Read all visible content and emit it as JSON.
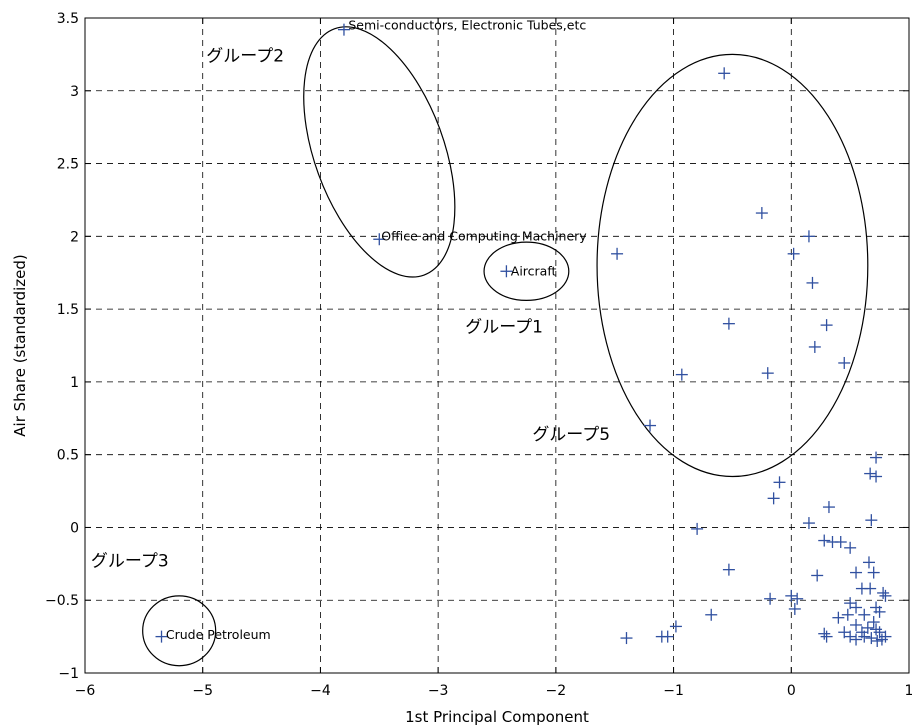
{
  "chart_data": {
    "type": "scatter",
    "xlabel": "1st Principal Component",
    "ylabel": "Air Share (standardized)",
    "xlim": [
      -6,
      1
    ],
    "ylim": [
      -1,
      3.5
    ],
    "xticks": [
      -6,
      -5,
      -4,
      -3,
      -2,
      -1,
      0,
      1
    ],
    "xtick_labels": [
      "−6",
      "−5",
      "−4",
      "−3",
      "−2",
      "−1",
      "0",
      "1"
    ],
    "yticks": [
      -1,
      -0.5,
      0,
      0.5,
      1,
      1.5,
      2,
      2.5,
      3,
      3.5
    ],
    "ytick_labels": [
      "−1",
      "−0.5",
      "0",
      "0.5",
      "1",
      "1.5",
      "2",
      "2.5",
      "3",
      "3.5"
    ],
    "grid": true,
    "marker": "+",
    "marker_color": "#3050a0",
    "points": [
      {
        "x": -3.8,
        "y": 3.42
      },
      {
        "x": -3.5,
        "y": 1.98
      },
      {
        "x": -2.42,
        "y": 1.76
      },
      {
        "x": -5.35,
        "y": -0.75
      },
      {
        "x": -0.57,
        "y": 3.12
      },
      {
        "x": -1.48,
        "y": 1.88
      },
      {
        "x": -0.25,
        "y": 2.16
      },
      {
        "x": 0.15,
        "y": 2.0
      },
      {
        "x": 0.02,
        "y": 1.88
      },
      {
        "x": 0.18,
        "y": 1.68
      },
      {
        "x": -0.53,
        "y": 1.4
      },
      {
        "x": 0.3,
        "y": 1.39
      },
      {
        "x": 0.2,
        "y": 1.24
      },
      {
        "x": 0.45,
        "y": 1.13
      },
      {
        "x": -0.93,
        "y": 1.05
      },
      {
        "x": -0.2,
        "y": 1.06
      },
      {
        "x": -1.2,
        "y": 0.7
      },
      {
        "x": 0.72,
        "y": 0.48
      },
      {
        "x": 0.67,
        "y": 0.37
      },
      {
        "x": 0.72,
        "y": 0.35
      },
      {
        "x": -0.1,
        "y": 0.31
      },
      {
        "x": -0.15,
        "y": 0.2
      },
      {
        "x": 0.32,
        "y": 0.14
      },
      {
        "x": 0.15,
        "y": 0.03
      },
      {
        "x": 0.68,
        "y": 0.05
      },
      {
        "x": -0.8,
        "y": -0.01
      },
      {
        "x": 0.28,
        "y": -0.09
      },
      {
        "x": 0.35,
        "y": -0.1
      },
      {
        "x": 0.42,
        "y": -0.1
      },
      {
        "x": 0.5,
        "y": -0.14
      },
      {
        "x": 0.66,
        "y": -0.24
      },
      {
        "x": -0.53,
        "y": -0.29
      },
      {
        "x": 0.22,
        "y": -0.33
      },
      {
        "x": 0.55,
        "y": -0.31
      },
      {
        "x": 0.7,
        "y": -0.31
      },
      {
        "x": 0.6,
        "y": -0.42
      },
      {
        "x": 0.67,
        "y": -0.42
      },
      {
        "x": 0.78,
        "y": -0.45
      },
      {
        "x": 0.8,
        "y": -0.47
      },
      {
        "x": 0.0,
        "y": -0.47
      },
      {
        "x": 0.05,
        "y": -0.49
      },
      {
        "x": -0.18,
        "y": -0.49
      },
      {
        "x": 0.03,
        "y": -0.56
      },
      {
        "x": 0.5,
        "y": -0.52
      },
      {
        "x": 0.55,
        "y": -0.55
      },
      {
        "x": 0.72,
        "y": -0.55
      },
      {
        "x": 0.75,
        "y": -0.58
      },
      {
        "x": 0.48,
        "y": -0.6
      },
      {
        "x": 0.62,
        "y": -0.6
      },
      {
        "x": -0.68,
        "y": -0.6
      },
      {
        "x": 0.4,
        "y": -0.62
      },
      {
        "x": 0.7,
        "y": -0.65
      },
      {
        "x": 0.55,
        "y": -0.67
      },
      {
        "x": 0.65,
        "y": -0.69
      },
      {
        "x": 0.72,
        "y": -0.7
      },
      {
        "x": -0.98,
        "y": -0.68
      },
      {
        "x": 0.28,
        "y": -0.73
      },
      {
        "x": 0.45,
        "y": -0.72
      },
      {
        "x": 0.6,
        "y": -0.72
      },
      {
        "x": 0.75,
        "y": -0.72
      },
      {
        "x": 0.3,
        "y": -0.75
      },
      {
        "x": 0.5,
        "y": -0.75
      },
      {
        "x": 0.62,
        "y": -0.75
      },
      {
        "x": 0.8,
        "y": -0.75
      },
      {
        "x": -1.05,
        "y": -0.75
      },
      {
        "x": -1.1,
        "y": -0.75
      },
      {
        "x": -1.4,
        "y": -0.76
      },
      {
        "x": 0.77,
        "y": -0.77
      },
      {
        "x": 0.55,
        "y": -0.77
      },
      {
        "x": 0.68,
        "y": -0.76
      },
      {
        "x": 0.73,
        "y": -0.78
      }
    ],
    "point_labels": [
      {
        "text": "Semi-conductors, Electronic Tubes,etc",
        "x": -3.78,
        "y": 3.45
      },
      {
        "text": "Office and Computing Machinery",
        "x": -3.5,
        "y": 2.0
      },
      {
        "text": "Aircraft",
        "x": -2.4,
        "y": 1.76
      },
      {
        "text": "Crude Petroleum",
        "x": -5.33,
        "y": -0.74
      }
    ],
    "groups": [
      {
        "label": "グループ2",
        "label_x": -4.97,
        "label_y": 3.2,
        "cx": -3.5,
        "cy": 2.58,
        "rx": 0.55,
        "ry": 0.9,
        "rotation_deg": -20
      },
      {
        "label": "グループ1",
        "label_x": -2.77,
        "label_y": 1.34,
        "cx": -2.25,
        "cy": 1.76,
        "rx": 0.36,
        "ry": 0.2,
        "rotation_deg": 0
      },
      {
        "label": "グループ5",
        "label_x": -2.2,
        "label_y": 0.6,
        "cx": -0.5,
        "cy": 1.8,
        "rx": 1.15,
        "ry": 1.45,
        "rotation_deg": 0
      },
      {
        "label": "グループ3",
        "label_x": -5.95,
        "label_y": -0.27,
        "cx": -5.2,
        "cy": -0.71,
        "rx": 0.31,
        "ry": 0.24,
        "rotation_deg": 0
      }
    ]
  }
}
